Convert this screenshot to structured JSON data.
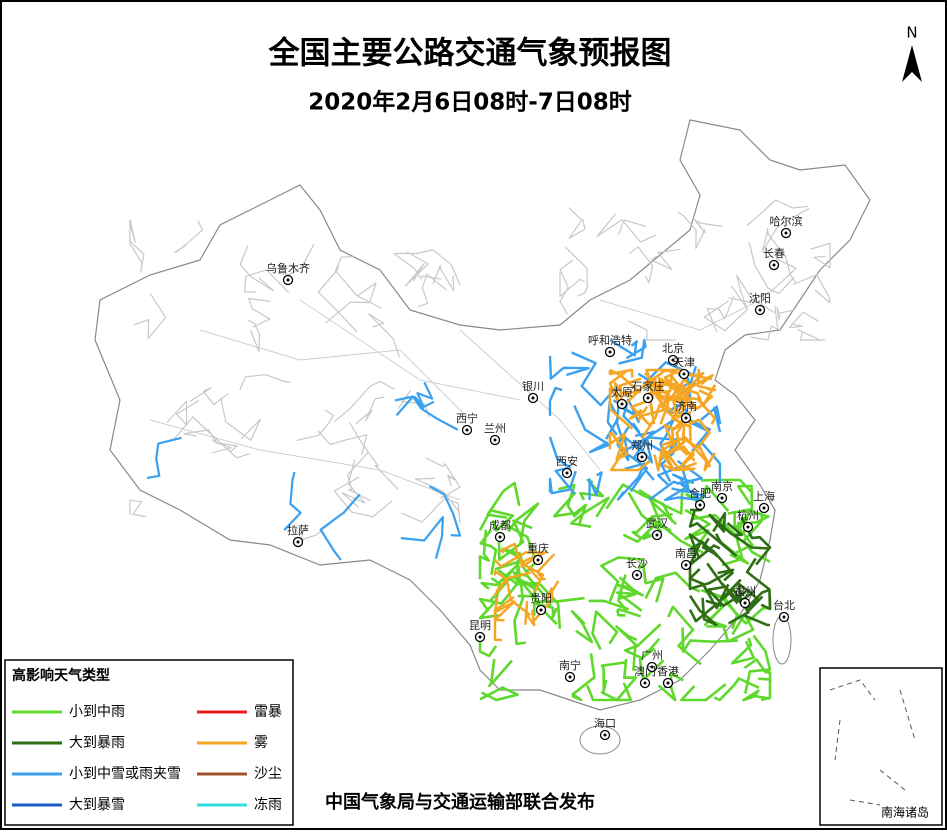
{
  "title": "全国主要公路交通气象预报图",
  "subtitle": "2020年2月6日08时-7日08时",
  "north": "N",
  "legend": {
    "title": "高影响天气类型",
    "items": [
      {
        "label": "小到中雨",
        "color": "#5fd82c"
      },
      {
        "label": "雷暴",
        "color": "#e81c1c"
      },
      {
        "label": "大到暴雨",
        "color": "#2e6e14"
      },
      {
        "label": "雾",
        "color": "#f5a623"
      },
      {
        "label": "小到中雪或雨夹雪",
        "color": "#3aa0f0"
      },
      {
        "label": "沙尘",
        "color": "#a0522d"
      },
      {
        "label": "大到暴雪",
        "color": "#1a5cc8"
      },
      {
        "label": "冻雨",
        "color": "#33dddd"
      }
    ]
  },
  "cities": [
    "乌鲁木齐",
    "哈尔滨",
    "长春",
    "沈阳",
    "呼和浩特",
    "北京",
    "天津",
    "银川",
    "太原",
    "石家庄",
    "济南",
    "西宁",
    "兰州",
    "西安",
    "郑州",
    "南京",
    "合肥",
    "上海",
    "拉萨",
    "成都",
    "武汉",
    "杭州",
    "重庆",
    "长沙",
    "南昌",
    "贵阳",
    "福州",
    "台北",
    "昆明",
    "南宁",
    "广州",
    "澳门",
    "香港",
    "海口"
  ],
  "publisher": "中国气象局与交通运输部联合发布",
  "inset_label": "南海诸岛"
}
